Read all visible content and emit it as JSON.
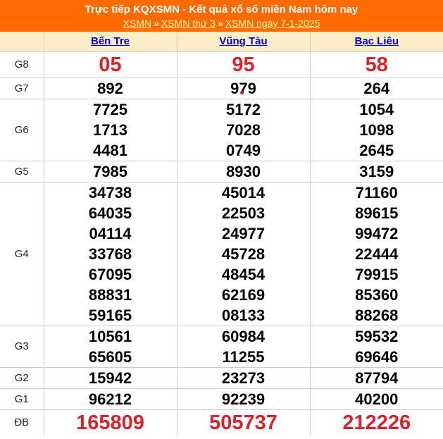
{
  "header": {
    "title": "Trực tiếp KQXSMN - Kết quả xổ số miền Nam hôm nay",
    "separator": "»",
    "breadcrumb": [
      {
        "label": "XSMN"
      },
      {
        "label": "XSMN thứ 3"
      },
      {
        "label": "XSMN ngày 7-1-2025"
      }
    ]
  },
  "table": {
    "columns": [
      "Bến Tre",
      "Vũng Tàu",
      "Bạc Liêu"
    ],
    "groups": [
      {
        "label": "G8",
        "style": "red-big",
        "values": [
          [
            "05"
          ],
          [
            "95"
          ],
          [
            "58"
          ]
        ]
      },
      {
        "label": "G7",
        "style": "normal",
        "values": [
          [
            "892"
          ],
          [
            "979"
          ],
          [
            "264"
          ]
        ]
      },
      {
        "label": "G6",
        "style": "normal",
        "values": [
          [
            "7725",
            "1713",
            "4481"
          ],
          [
            "5172",
            "7028",
            "0749"
          ],
          [
            "1054",
            "1098",
            "2645"
          ]
        ]
      },
      {
        "label": "G5",
        "style": "normal",
        "values": [
          [
            "7985"
          ],
          [
            "8930"
          ],
          [
            "3159"
          ]
        ]
      },
      {
        "label": "G4",
        "style": "normal",
        "values": [
          [
            "34738",
            "64035",
            "04114",
            "33768",
            "67095",
            "88831",
            "59165"
          ],
          [
            "45014",
            "22503",
            "24977",
            "45728",
            "48454",
            "62169",
            "08133"
          ],
          [
            "71160",
            "89615",
            "99472",
            "22444",
            "79915",
            "85360",
            "88268"
          ]
        ]
      },
      {
        "label": "G3",
        "style": "normal",
        "values": [
          [
            "10561",
            "65605"
          ],
          [
            "60984",
            "11255"
          ],
          [
            "59532",
            "69646"
          ]
        ]
      },
      {
        "label": "G2",
        "style": "normal",
        "values": [
          [
            "15942"
          ],
          [
            "23273"
          ],
          [
            "87794"
          ]
        ]
      },
      {
        "label": "G1",
        "style": "normal",
        "values": [
          [
            "96212"
          ],
          [
            "92239"
          ],
          [
            "40200"
          ]
        ]
      },
      {
        "label": "ĐB",
        "style": "red-big",
        "values": [
          [
            "165809"
          ],
          [
            "505737"
          ],
          [
            "212226"
          ]
        ]
      }
    ]
  },
  "colors": {
    "header_background": "#FF6B00",
    "header_title": "#FFFFFF",
    "header_link": "#FFF6A3",
    "column_header_background": "#FBEEC6",
    "column_link": "#0000CC",
    "number_normal": "#000000",
    "number_highlight": "#D6242C",
    "border": "#CCCCCC"
  }
}
